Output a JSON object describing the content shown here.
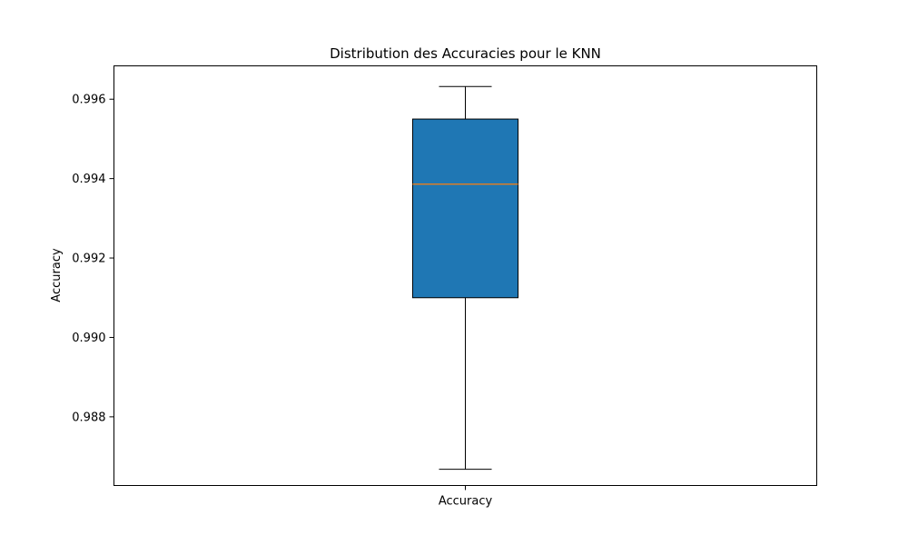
{
  "chart_data": {
    "type": "box",
    "title": "Distribution des Accuracies pour le KNN",
    "xlabel": "",
    "ylabel": "Accuracy",
    "categories": [
      "Accuracy"
    ],
    "ylim": [
      0.98627,
      0.99684
    ],
    "yticks": [
      "0.988",
      "0.990",
      "0.992",
      "0.994",
      "0.996"
    ],
    "boxes": [
      {
        "category": "Accuracy",
        "whisker_low": 0.98668,
        "q1": 0.991,
        "median": 0.99386,
        "q3": 0.9955,
        "whisker_high": 0.99632
      }
    ],
    "grid": false,
    "colors": {
      "box_fill": "#1f77b4",
      "median_line": "#ff7f0e",
      "edge": "#000000"
    }
  }
}
